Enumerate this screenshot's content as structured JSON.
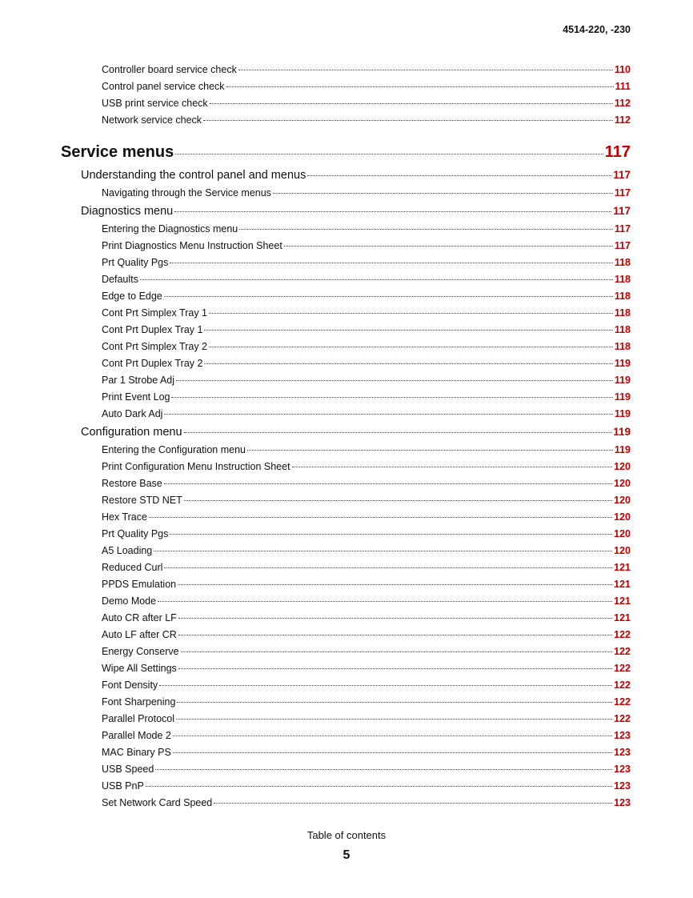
{
  "header": {
    "model": "4514-220, -230"
  },
  "toc": [
    {
      "level": 2,
      "title": "Controller board service check",
      "page": "110"
    },
    {
      "level": 2,
      "title": "Control panel service check",
      "page": "111"
    },
    {
      "level": 2,
      "title": "USB print service check",
      "page": "112"
    },
    {
      "level": 2,
      "title": "Network service check",
      "page": "112"
    },
    {
      "level": 0,
      "title": "Service menus",
      "page": "117"
    },
    {
      "level": 1,
      "title": "Understanding the control panel and menus",
      "page": "117"
    },
    {
      "level": 2,
      "title": "Navigating through the Service menus",
      "page": "117"
    },
    {
      "level": 1,
      "title": "Diagnostics menu",
      "page": "117"
    },
    {
      "level": 2,
      "title": "Entering the Diagnostics menu",
      "page": "117"
    },
    {
      "level": 2,
      "title": "Print Diagnostics Menu Instruction Sheet",
      "page": "117"
    },
    {
      "level": 2,
      "title": "Prt Quality Pgs",
      "page": "118"
    },
    {
      "level": 2,
      "title": "Defaults",
      "page": "118"
    },
    {
      "level": 2,
      "title": "Edge to Edge",
      "page": "118"
    },
    {
      "level": 2,
      "title": "Cont Prt Simplex Tray 1",
      "page": "118"
    },
    {
      "level": 2,
      "title": "Cont Prt Duplex Tray 1",
      "page": "118"
    },
    {
      "level": 2,
      "title": "Cont Prt Simplex Tray 2",
      "page": "118"
    },
    {
      "level": 2,
      "title": "Cont Prt Duplex Tray 2",
      "page": "119"
    },
    {
      "level": 2,
      "title": "Par 1 Strobe Adj",
      "page": "119"
    },
    {
      "level": 2,
      "title": "Print Event Log",
      "page": "119"
    },
    {
      "level": 2,
      "title": "Auto Dark Adj",
      "page": "119"
    },
    {
      "level": 1,
      "title": "Configuration menu",
      "page": "119"
    },
    {
      "level": 2,
      "title": "Entering the Configuration menu",
      "page": "119"
    },
    {
      "level": 2,
      "title": "Print Configuration Menu Instruction Sheet",
      "page": "120"
    },
    {
      "level": 2,
      "title": "Restore Base",
      "page": "120"
    },
    {
      "level": 2,
      "title": "Restore STD NET",
      "page": "120"
    },
    {
      "level": 2,
      "title": "Hex Trace",
      "page": "120"
    },
    {
      "level": 2,
      "title": "Prt Quality Pgs",
      "page": "120"
    },
    {
      "level": 2,
      "title": "A5 Loading",
      "page": "120"
    },
    {
      "level": 2,
      "title": "Reduced Curl",
      "page": "121"
    },
    {
      "level": 2,
      "title": "PPDS Emulation",
      "page": "121"
    },
    {
      "level": 2,
      "title": "Demo Mode",
      "page": "121"
    },
    {
      "level": 2,
      "title": "Auto CR after LF",
      "page": "121"
    },
    {
      "level": 2,
      "title": "Auto LF after CR",
      "page": "122"
    },
    {
      "level": 2,
      "title": "Energy Conserve",
      "page": "122"
    },
    {
      "level": 2,
      "title": "Wipe All Settings",
      "page": "122"
    },
    {
      "level": 2,
      "title": "Font Density",
      "page": "122"
    },
    {
      "level": 2,
      "title": "Font Sharpening",
      "page": "122"
    },
    {
      "level": 2,
      "title": "Parallel Protocol",
      "page": "122"
    },
    {
      "level": 2,
      "title": "Parallel Mode 2",
      "page": "123"
    },
    {
      "level": 2,
      "title": "MAC Binary PS",
      "page": "123"
    },
    {
      "level": 2,
      "title": "USB Speed",
      "page": "123"
    },
    {
      "level": 2,
      "title": "USB PnP",
      "page": "123"
    },
    {
      "level": 2,
      "title": "Set Network Card Speed",
      "page": "123"
    }
  ],
  "footer": {
    "label": "Table of contents",
    "page_number": "5"
  },
  "colors": {
    "page_link": "#c00000"
  }
}
